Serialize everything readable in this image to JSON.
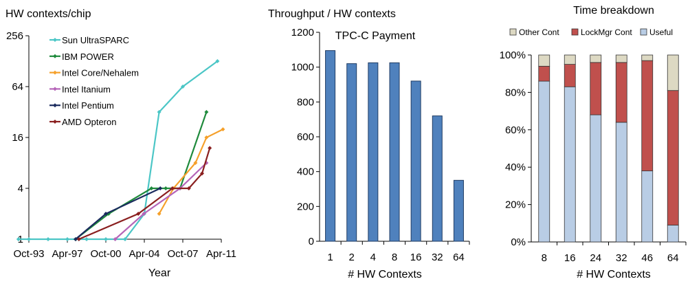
{
  "chart_data": [
    {
      "type": "line",
      "title": "HW contexts/chip",
      "xlabel": "Year",
      "ylabel": "",
      "yscale": "log2",
      "ylim": [
        1,
        256
      ],
      "yticks": [
        1,
        4,
        16,
        64,
        256
      ],
      "xticks": [
        "Oct-93",
        "Apr-97",
        "Oct-00",
        "Apr-04",
        "Oct-07",
        "Apr-11"
      ],
      "xtick_values": [
        1993.75,
        1997.25,
        2000.75,
        2004.25,
        2007.75,
        2011.25
      ],
      "xlim": [
        1993.75,
        2011.25
      ],
      "legend_position": "top-left",
      "grid": false,
      "series": [
        {
          "name": "Sun UltraSPARC",
          "color": "#4bc6c6",
          "x": [
            1992.8,
            1993.75,
            1995.5,
            1997.25,
            1999.0,
            2000.75,
            2002.5,
            2004.25,
            2005.6,
            2007.75,
            2010.9
          ],
          "y": [
            1,
            1,
            1,
            1,
            1,
            1,
            1,
            2,
            32,
            64,
            128
          ]
        },
        {
          "name": "IBM POWER",
          "color": "#1f8a3c",
          "x": [
            1998.0,
            2001.0,
            2004.9,
            2006.2,
            2007.5,
            2009.9
          ],
          "y": [
            1,
            2,
            4,
            4,
            4,
            32
          ]
        },
        {
          "name": "Intel Core/Nehalem",
          "color": "#f5a02a",
          "x": [
            2005.6,
            2006.9,
            2008.9,
            2009.9,
            2011.4
          ],
          "y": [
            2,
            4,
            8,
            16,
            20
          ]
        },
        {
          "name": "Intel Itanium",
          "color": "#b565b8",
          "x": [
            2001.6,
            2004.2,
            2007.5,
            2009.9
          ],
          "y": [
            1,
            2,
            4,
            8
          ]
        },
        {
          "name": "Intel Pentium",
          "color": "#1b2b5e",
          "x": [
            1998.0,
            2000.75,
            2005.7
          ],
          "y": [
            1,
            2,
            4
          ]
        },
        {
          "name": "AMD Opteron",
          "color": "#8a1f1f",
          "x": [
            1998.3,
            2003.7,
            2006.8,
            2008.3,
            2009.5,
            2010.2
          ],
          "y": [
            1,
            2,
            4,
            4,
            6,
            12
          ]
        }
      ]
    },
    {
      "type": "bar",
      "title": "Throughput / HW contexts",
      "subtitle": "TPC-C Payment",
      "xlabel": "# HW Contexts",
      "ylabel": "",
      "categories": [
        "1",
        "2",
        "4",
        "8",
        "16",
        "32",
        "64"
      ],
      "values": [
        1095,
        1020,
        1025,
        1025,
        920,
        720,
        350
      ],
      "ylim": [
        0,
        1200
      ],
      "yticks": [
        0,
        200,
        400,
        600,
        800,
        1000,
        1200
      ],
      "color": "#4f81bd",
      "grid": false
    },
    {
      "type": "bar",
      "stacked": true,
      "title": "Time breakdown",
      "xlabel": "# HW Contexts",
      "ylabel": "",
      "categories": [
        "8",
        "16",
        "24",
        "32",
        "46",
        "64"
      ],
      "ylim": [
        0,
        100
      ],
      "yticks": [
        "0%",
        "20%",
        "40%",
        "60%",
        "80%",
        "100%"
      ],
      "legend_position": "top",
      "grid": false,
      "series": [
        {
          "name": "Useful",
          "color": "#b9cde5",
          "values": [
            86,
            83,
            68,
            64,
            38,
            9
          ]
        },
        {
          "name": "LockMgr Cont",
          "color": "#c0504d",
          "values": [
            8,
            12,
            28,
            32,
            59,
            72
          ]
        },
        {
          "name": "Other Cont",
          "color": "#ddd9c3",
          "values": [
            6,
            5,
            4,
            4,
            3,
            19
          ]
        }
      ],
      "legend_order": [
        "Other Cont",
        "LockMgr Cont",
        "Useful"
      ]
    }
  ]
}
